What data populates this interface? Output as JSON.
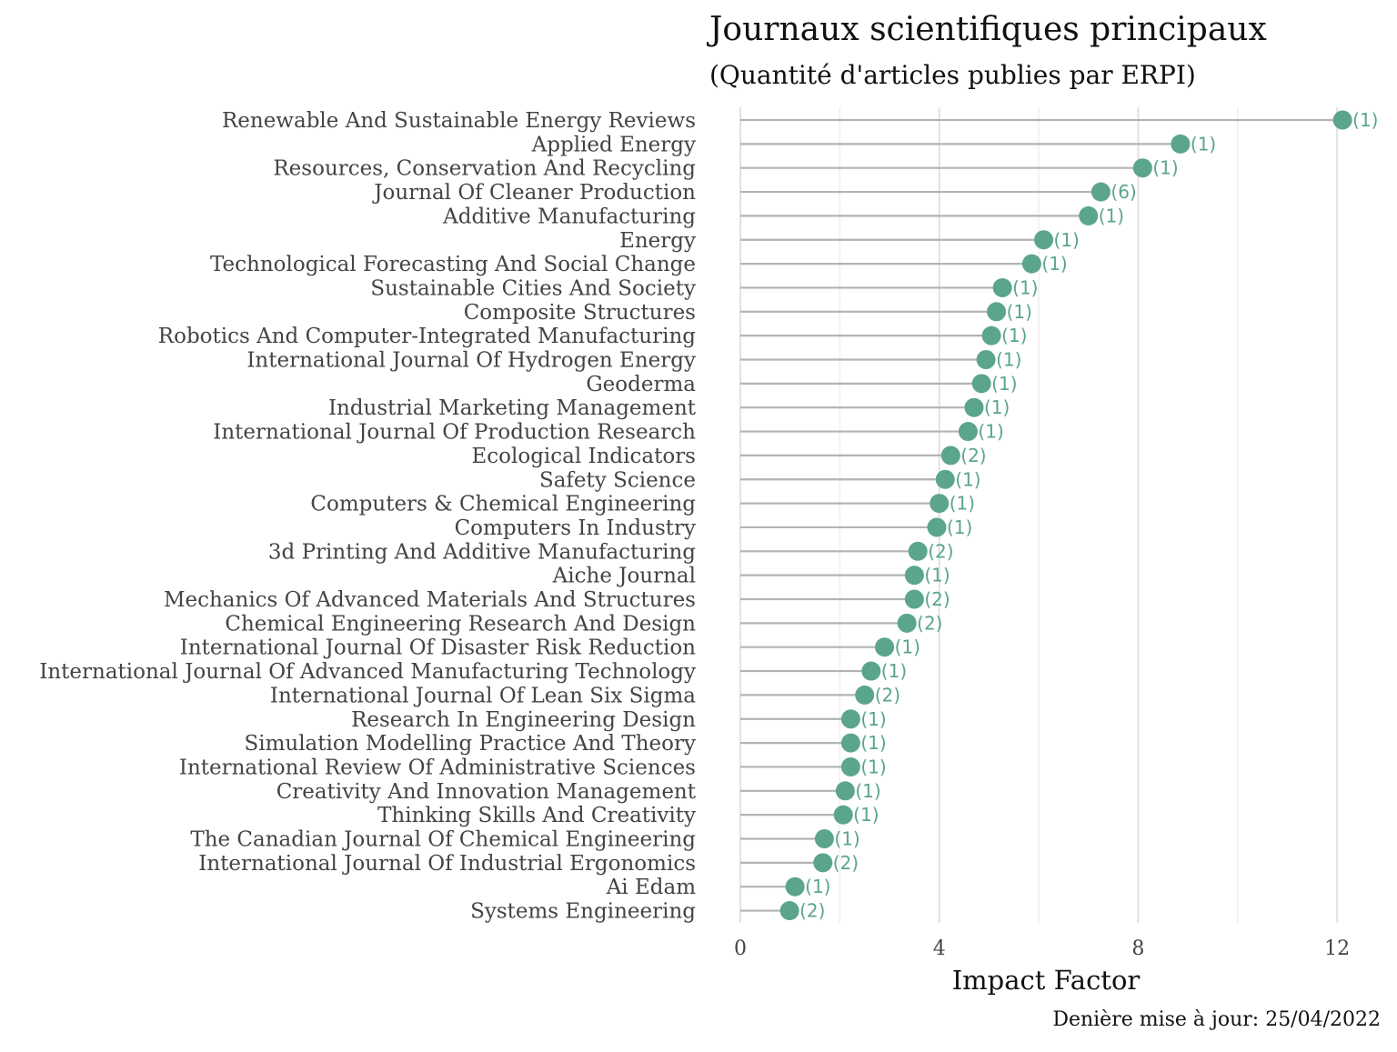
{
  "chart_data": {
    "type": "lollipop",
    "title": "Journaux scientifiques principaux",
    "subtitle": "(Quantité d'articles publies par ERPI)",
    "xlabel": "Impact Factor",
    "ylabel": "",
    "caption": "Denière mise à jour: 25/04/2022",
    "xlim": [
      0,
      12.4
    ],
    "xticks": [
      0,
      4,
      8,
      12
    ],
    "grid": "vertical",
    "point_color": "#5ba58c",
    "stem_color": "#b3b3b3",
    "categories": [
      "Renewable And Sustainable Energy Reviews",
      "Applied Energy",
      "Resources, Conservation And Recycling",
      "Journal Of Cleaner Production",
      "Additive Manufacturing",
      "Energy",
      "Technological Forecasting And Social Change",
      "Sustainable Cities And Society",
      "Composite Structures",
      "Robotics And Computer-Integrated Manufacturing",
      "International Journal Of Hydrogen Energy",
      "Geoderma",
      "Industrial Marketing Management",
      "International Journal Of Production Research",
      "Ecological Indicators",
      "Safety Science",
      "Computers & Chemical Engineering",
      "Computers In Industry",
      "3d Printing And Additive Manufacturing",
      "Aiche Journal",
      "Mechanics Of Advanced Materials And Structures",
      "Chemical Engineering Research And Design",
      "International Journal Of Disaster Risk Reduction",
      "International Journal Of Advanced Manufacturing Technology",
      "International Journal Of Lean Six Sigma",
      "Research In Engineering Design",
      "Simulation Modelling Practice And Theory",
      "International Review Of Administrative Sciences",
      "Creativity And Innovation Management",
      "Thinking Skills And Creativity",
      "The Canadian Journal Of Chemical Engineering",
      "International Journal Of Industrial Ergonomics",
      "Ai Edam",
      "Systems Engineering"
    ],
    "values": [
      12.11,
      8.85,
      8.09,
      7.25,
      7.0,
      6.1,
      5.86,
      5.27,
      5.15,
      5.05,
      4.94,
      4.85,
      4.7,
      4.58,
      4.23,
      4.12,
      4.0,
      3.95,
      3.57,
      3.5,
      3.5,
      3.35,
      2.9,
      2.63,
      2.5,
      2.22,
      2.22,
      2.22,
      2.11,
      2.07,
      1.69,
      1.66,
      1.1,
      0.99
    ],
    "count_labels": [
      "(1)",
      "(1)",
      "(1)",
      "(6)",
      "(1)",
      "(1)",
      "(1)",
      "(1)",
      "(1)",
      "(1)",
      "(1)",
      "(1)",
      "(1)",
      "(1)",
      "(2)",
      "(1)",
      "(1)",
      "(1)",
      "(2)",
      "(1)",
      "(2)",
      "(2)",
      "(1)",
      "(1)",
      "(2)",
      "(1)",
      "(1)",
      "(1)",
      "(1)",
      "(1)",
      "(1)",
      "(2)",
      "(1)",
      "(2)"
    ]
  }
}
